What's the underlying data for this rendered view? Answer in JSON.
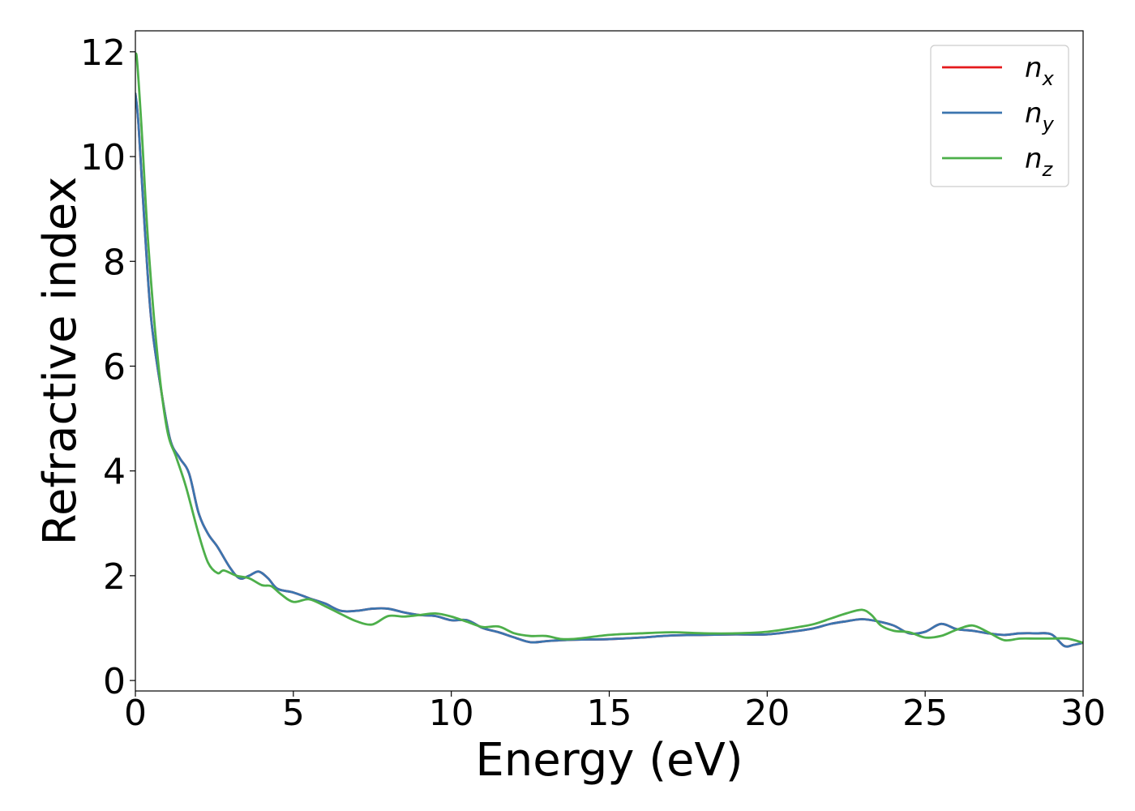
{
  "chart_data": {
    "type": "line",
    "xlabel": "Energy (eV)",
    "ylabel": "Refractive index",
    "xlim": [
      0,
      30
    ],
    "ylim": [
      -0.2,
      12.4
    ],
    "xticks": [
      0,
      5,
      10,
      15,
      20,
      25,
      30
    ],
    "yticks": [
      0,
      2,
      4,
      6,
      8,
      10,
      12
    ],
    "grid": false,
    "legend_position": "top-right",
    "series": [
      {
        "name": "n_x",
        "legend_base": "n",
        "legend_sub": "x",
        "color": "#e41a1c",
        "x": [
          0,
          0.1,
          0.3,
          0.5,
          0.8,
          1.1,
          1.4,
          1.7,
          2.0,
          2.3,
          2.6,
          3.0,
          3.3,
          3.6,
          3.9,
          4.2,
          4.5,
          5.0,
          5.5,
          6.0,
          6.5,
          7.0,
          7.5,
          8.0,
          8.5,
          9.0,
          9.5,
          10.0,
          10.5,
          11.0,
          11.5,
          12.0,
          12.5,
          13.0,
          13.5,
          14.0,
          15.0,
          16.0,
          17.0,
          18.0,
          19.0,
          20.0,
          21.0,
          21.5,
          22.0,
          22.5,
          23.0,
          23.5,
          24.0,
          24.5,
          25.0,
          25.5,
          26.0,
          26.5,
          27.0,
          27.5,
          28.0,
          28.5,
          29.0,
          29.4,
          29.7,
          30.0
        ],
        "y": [
          11.2,
          10.6,
          8.6,
          6.9,
          5.6,
          4.6,
          4.25,
          3.95,
          3.2,
          2.8,
          2.55,
          2.15,
          1.95,
          2.0,
          2.08,
          1.95,
          1.75,
          1.68,
          1.57,
          1.47,
          1.33,
          1.33,
          1.37,
          1.37,
          1.3,
          1.25,
          1.23,
          1.15,
          1.15,
          1.0,
          0.92,
          0.82,
          0.73,
          0.75,
          0.77,
          0.78,
          0.79,
          0.82,
          0.86,
          0.87,
          0.88,
          0.88,
          0.95,
          1.0,
          1.08,
          1.13,
          1.17,
          1.13,
          1.05,
          0.9,
          0.93,
          1.08,
          0.98,
          0.95,
          0.9,
          0.87,
          0.9,
          0.9,
          0.88,
          0.66,
          0.68,
          0.72
        ]
      },
      {
        "name": "n_y",
        "legend_base": "n",
        "legend_sub": "y",
        "color": "#3b75af",
        "x": [
          0,
          0.1,
          0.3,
          0.5,
          0.8,
          1.1,
          1.4,
          1.7,
          2.0,
          2.3,
          2.6,
          3.0,
          3.3,
          3.6,
          3.9,
          4.2,
          4.5,
          5.0,
          5.5,
          6.0,
          6.5,
          7.0,
          7.5,
          8.0,
          8.5,
          9.0,
          9.5,
          10.0,
          10.5,
          11.0,
          11.5,
          12.0,
          12.5,
          13.0,
          13.5,
          14.0,
          15.0,
          16.0,
          17.0,
          18.0,
          19.0,
          20.0,
          21.0,
          21.5,
          22.0,
          22.5,
          23.0,
          23.5,
          24.0,
          24.5,
          25.0,
          25.5,
          26.0,
          26.5,
          27.0,
          27.5,
          28.0,
          28.5,
          29.0,
          29.4,
          29.7,
          30.0
        ],
        "y": [
          11.2,
          10.6,
          8.6,
          6.9,
          5.6,
          4.6,
          4.25,
          3.95,
          3.2,
          2.8,
          2.55,
          2.15,
          1.95,
          2.0,
          2.08,
          1.95,
          1.75,
          1.68,
          1.57,
          1.47,
          1.33,
          1.33,
          1.37,
          1.37,
          1.3,
          1.25,
          1.23,
          1.15,
          1.15,
          1.0,
          0.92,
          0.82,
          0.73,
          0.75,
          0.77,
          0.78,
          0.79,
          0.82,
          0.86,
          0.87,
          0.88,
          0.88,
          0.95,
          1.0,
          1.08,
          1.13,
          1.17,
          1.13,
          1.05,
          0.9,
          0.93,
          1.08,
          0.98,
          0.95,
          0.9,
          0.87,
          0.9,
          0.9,
          0.88,
          0.66,
          0.68,
          0.72
        ]
      },
      {
        "name": "n_z",
        "legend_base": "n",
        "legend_sub": "z",
        "color": "#4daf4a",
        "x": [
          0,
          0.05,
          0.2,
          0.4,
          0.7,
          1.0,
          1.3,
          1.6,
          2.0,
          2.3,
          2.6,
          2.8,
          3.2,
          3.6,
          4.0,
          4.3,
          4.6,
          5.0,
          5.5,
          6.0,
          6.5,
          7.0,
          7.5,
          8.0,
          8.5,
          9.0,
          9.5,
          10.0,
          10.5,
          11.0,
          11.5,
          12.0,
          12.5,
          13.0,
          13.5,
          14.0,
          15.0,
          16.0,
          17.0,
          18.0,
          19.0,
          20.0,
          21.0,
          21.5,
          22.0,
          22.5,
          23.0,
          23.3,
          23.6,
          24.0,
          24.5,
          25.0,
          25.5,
          26.0,
          26.5,
          27.0,
          27.5,
          28.0,
          28.5,
          29.0,
          29.5,
          30.0
        ],
        "y": [
          11.9,
          11.85,
          10.5,
          8.4,
          6.2,
          4.8,
          4.25,
          3.7,
          2.8,
          2.25,
          2.05,
          2.1,
          2.0,
          1.95,
          1.82,
          1.8,
          1.65,
          1.5,
          1.55,
          1.42,
          1.27,
          1.13,
          1.07,
          1.23,
          1.22,
          1.25,
          1.28,
          1.22,
          1.12,
          1.02,
          1.03,
          0.9,
          0.85,
          0.85,
          0.79,
          0.8,
          0.87,
          0.9,
          0.92,
          0.9,
          0.9,
          0.93,
          1.02,
          1.08,
          1.18,
          1.28,
          1.35,
          1.25,
          1.05,
          0.95,
          0.92,
          0.82,
          0.85,
          0.97,
          1.05,
          0.92,
          0.77,
          0.8,
          0.8,
          0.8,
          0.8,
          0.72
        ]
      }
    ]
  }
}
